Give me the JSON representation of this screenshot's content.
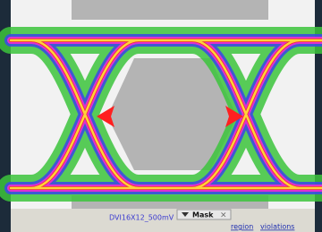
{
  "waveform_label": "DVI16X12_500mV",
  "mask_button": "Mask",
  "links": [
    "region",
    "violations"
  ]
}
